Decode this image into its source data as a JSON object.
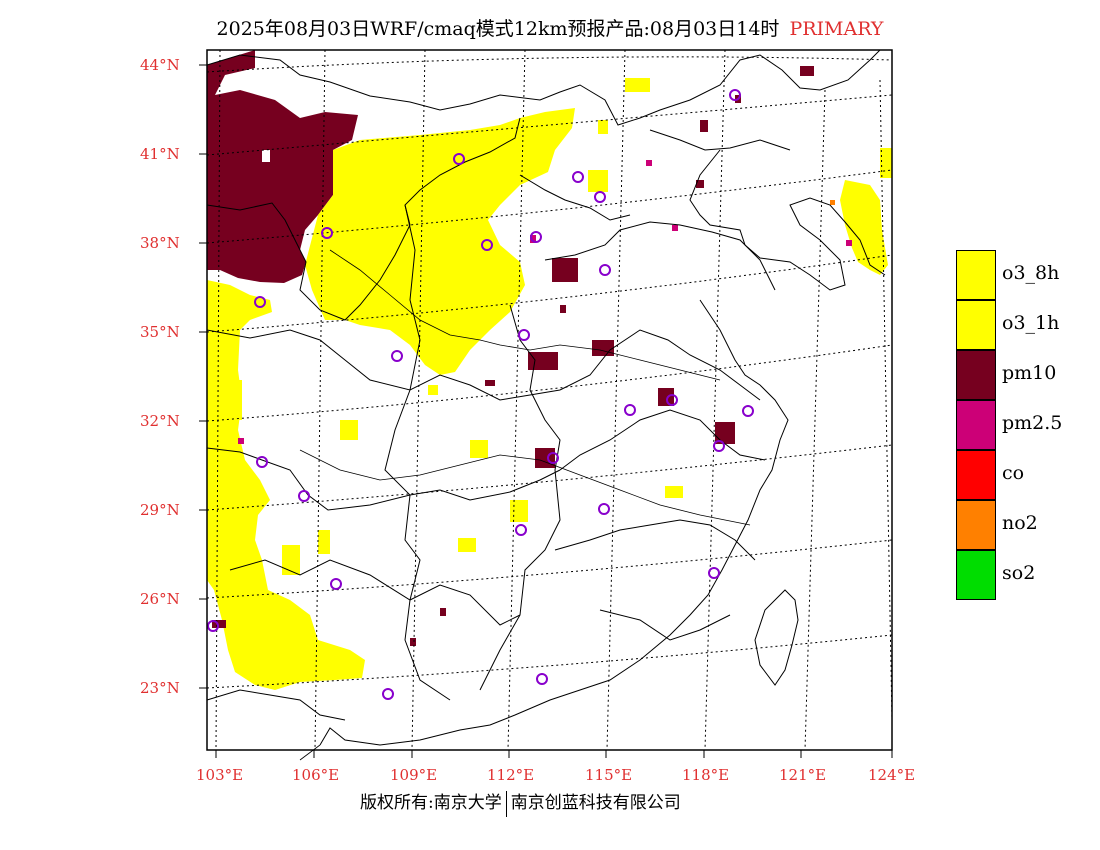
{
  "title": {
    "main": "2025年08月03日WRF/cmaq模式12km预报产品:08月03日14时",
    "highlight": "PRIMARY"
  },
  "lat_labels": [
    "44°N",
    "41°N",
    "38°N",
    "35°N",
    "32°N",
    "29°N",
    "26°N",
    "23°N"
  ],
  "lon_labels": [
    "103°E",
    "106°E",
    "109°E",
    "112°E",
    "115°E",
    "118°E",
    "121°E",
    "124°E"
  ],
  "legend": [
    {
      "label": "o3_8h",
      "color": "#ffff00"
    },
    {
      "label": "o3_1h",
      "color": "#ffff00"
    },
    {
      "label": "pm10",
      "color": "#76001f"
    },
    {
      "label": "pm2.5",
      "color": "#cc0077"
    },
    {
      "label": "co",
      "color": "#ff0000"
    },
    {
      "label": "no2",
      "color": "#ff8000"
    },
    {
      "label": "so2",
      "color": "#00dd00"
    }
  ],
  "footer": {
    "left": "版权所有:南京大学",
    "right": "南京创蓝科技有限公司"
  },
  "colors": {
    "o3": "#ffff00",
    "pm10": "#76001f",
    "pm25": "#cc0077",
    "station": "#8800cc",
    "axis_label": "#e03030"
  }
}
